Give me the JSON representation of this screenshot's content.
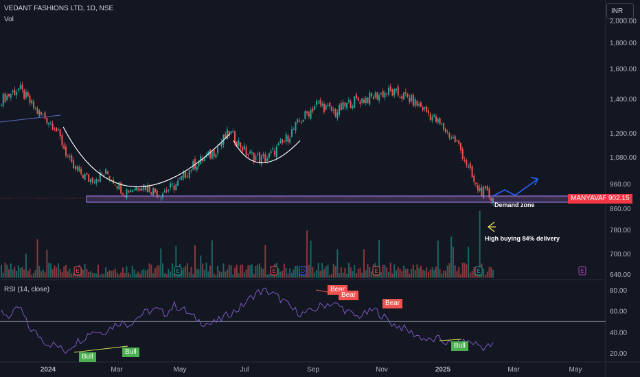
{
  "header": {
    "symbol_line": "VEDANT FASHIONS LTD, 1D, NSE",
    "volume_label": "Vol",
    "currency": "INR"
  },
  "price_tag": {
    "ticker": "MANYAVAR",
    "price": "902.15"
  },
  "annotations": {
    "demand_zone": "Demand zone",
    "high_buying": "High buying 84% delivery"
  },
  "earnings_marker": "E",
  "dividend_marker": "D",
  "rsi": {
    "label": "RSI (14, close)",
    "bull_labels": [
      "Bull",
      "Bull",
      "Bull"
    ],
    "bear_labels": [
      "Bear",
      "Bear",
      "Bear"
    ]
  },
  "colors": {
    "up": "#26a69a",
    "down": "#ef5350",
    "rsi_line": "#7e57c2",
    "zone": "#b388ff",
    "price_tag_bg": "#f23645",
    "arrow": "#2962ff"
  },
  "chart_data": {
    "type": "candlestick",
    "title": "VEDANT FASHIONS LTD, 1D, NSE",
    "price_axis_ticks": [
      2000,
      1800,
      1600,
      1400,
      1200,
      1080,
      960,
      860,
      780,
      700,
      640
    ],
    "price_scale": "log",
    "rsi_axis_ticks": [
      80,
      60,
      40,
      20
    ],
    "x_axis_ticks": [
      "2024",
      "Mar",
      "May",
      "Jul",
      "Sep",
      "Nov",
      "2025",
      "Mar",
      "May"
    ],
    "last_price": 902.15,
    "demand_zone": [
      890,
      915
    ],
    "approx_close_path": [
      [
        "Dec 2023",
        1400
      ],
      [
        "Dec 2023",
        1470
      ],
      [
        "Jan 2024",
        1330
      ],
      [
        "Jan 2024",
        1250
      ],
      [
        "Feb 2024",
        1040
      ],
      [
        "Feb 2024",
        980
      ],
      [
        "Mar 2024",
        1010
      ],
      [
        "Mar 2024",
        930
      ],
      [
        "Apr 2024",
        960
      ],
      [
        "Apr 2024",
        920
      ],
      [
        "May 2024",
        960
      ],
      [
        "May 2024",
        1050
      ],
      [
        "Jun 2024",
        1100
      ],
      [
        "Jun 2024",
        1210
      ],
      [
        "Jul 2024",
        1100
      ],
      [
        "Jul 2024",
        1070
      ],
      [
        "Aug 2024",
        1150
      ],
      [
        "Aug 2024",
        1270
      ],
      [
        "Sep 2024",
        1380
      ],
      [
        "Sep 2024",
        1320
      ],
      [
        "Oct 2024",
        1390
      ],
      [
        "Oct 2024",
        1410
      ],
      [
        "Nov 2024",
        1450
      ],
      [
        "Nov 2024",
        1420
      ],
      [
        "Dec 2024",
        1350
      ],
      [
        "Dec 2024",
        1250
      ],
      [
        "Jan 2025",
        1150
      ],
      [
        "Jan 2025",
        950
      ],
      [
        "Feb 2025",
        902
      ]
    ],
    "rsi_overbought_line": 50
  }
}
